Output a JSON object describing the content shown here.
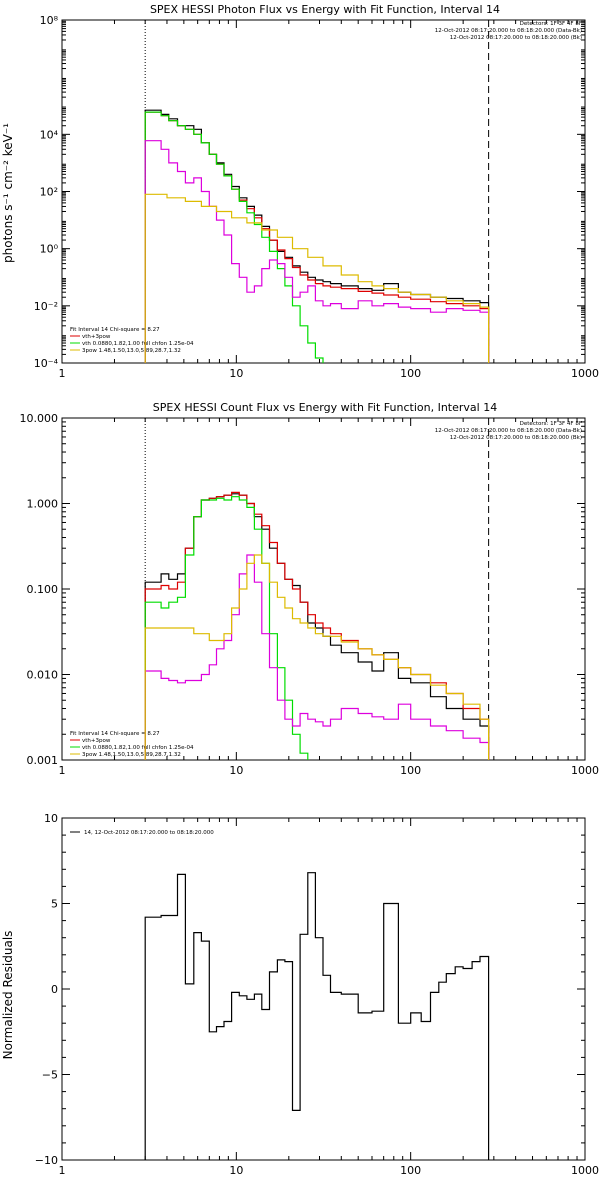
{
  "chart_data": [
    {
      "type": "line",
      "title": "SPEX HESSI Photon Flux vs Energy with Fit Function, Interval 14",
      "xlabel": "",
      "ylabel": "photons s⁻¹ cm⁻² keV⁻¹",
      "xscale": "log",
      "yscale": "log",
      "xlim": [
        1,
        1000
      ],
      "ylim": [
        0.0001,
        100000000
      ],
      "xticks": [
        1,
        10,
        100,
        1000
      ],
      "xtick_labels": [
        "1",
        "10",
        "100",
        "1000"
      ],
      "yticks": [
        0.0001,
        0.01,
        1,
        100,
        10000,
        100000000
      ],
      "ytick_labels": [
        "10⁻⁴",
        "10⁻²",
        "10⁰",
        "10²",
        "10⁴",
        "10⁸"
      ],
      "vlines": [
        {
          "x": 3,
          "style": "dotted"
        },
        {
          "x": 280,
          "style": "dashed"
        }
      ],
      "legend_top": [
        "Detectors: 1F 3F 4F 8F",
        "12-Oct-2012 08:17:20.000 to 08:18:20.000 (Data-Bk)",
        "12-Oct-2012 08:17:20.000 to 08:18:20.000 (Bk)"
      ],
      "legend_bottom": [
        "Fit Interval 14    Chi-square = 8.27",
        "vth+3pow",
        "vth 0.0880,1.82,1.00  full chfon 1.25e-04",
        "3pow 1.48,1.50,13.0,5.89,28.7,1.32"
      ],
      "series": [
        {
          "color": "#000000",
          "x": [
            3,
            3.3,
            3.7,
            4.1,
            4.6,
            5.1,
            5.7,
            6.3,
            7,
            7.7,
            8.5,
            9.4,
            10.4,
            11.5,
            12.7,
            14,
            15.5,
            17.2,
            19,
            21,
            23.2,
            25.7,
            28.4,
            31.4,
            34.7,
            40,
            50,
            60,
            70,
            85,
            100,
            130,
            160,
            200,
            250,
            280
          ],
          "y": [
            70000,
            70000,
            50000,
            35000,
            20000,
            20000,
            15000,
            5000,
            2000,
            1000,
            400,
            150,
            60,
            30,
            15,
            6,
            2,
            0.8,
            0.5,
            0.25,
            0.15,
            0.1,
            0.08,
            0.07,
            0.06,
            0.05,
            0.04,
            0.035,
            0.06,
            0.03,
            0.025,
            0.02,
            0.018,
            0.015,
            0.013,
            0.012
          ]
        },
        {
          "color": "#dd0000",
          "x": [
            3,
            3.3,
            3.7,
            4.1,
            4.6,
            5.1,
            5.7,
            6.3,
            7,
            7.7,
            8.5,
            9.4,
            10.4,
            11.5,
            12.7,
            14,
            15.5,
            17.2,
            19,
            21,
            23.2,
            25.7,
            28.4,
            31.4,
            34.7,
            40,
            50,
            60,
            70,
            85,
            100,
            130,
            160,
            200,
            250,
            280
          ],
          "y": [
            60000,
            60000,
            45000,
            30000,
            20000,
            15000,
            10000,
            5000,
            2000,
            900,
            350,
            120,
            50,
            25,
            12,
            5,
            2,
            0.9,
            0.45,
            0.22,
            0.12,
            0.08,
            0.06,
            0.05,
            0.045,
            0.04,
            0.032,
            0.028,
            0.024,
            0.02,
            0.017,
            0.014,
            0.012,
            0.01,
            0.008,
            0.007
          ]
        },
        {
          "color": "#00dd00",
          "x": [
            3,
            3.3,
            3.7,
            4.1,
            4.6,
            5.1,
            5.7,
            6.3,
            7,
            7.7,
            8.5,
            9.4,
            10.4,
            11.5,
            12.7,
            14,
            15.5,
            17.2,
            19,
            21,
            23.2,
            25.7,
            28.4,
            31.4
          ],
          "y": [
            60000,
            60000,
            45000,
            30000,
            20000,
            15000,
            10000,
            5000,
            2000,
            900,
            350,
            120,
            45,
            18,
            7,
            2.5,
            0.8,
            0.2,
            0.05,
            0.01,
            0.002,
            0.0005,
            0.00015,
            0.0001
          ]
        },
        {
          "color": "#dd00dd",
          "x": [
            3,
            3.3,
            3.7,
            4.1,
            4.6,
            5.1,
            5.7,
            6.3,
            7,
            7.7,
            8.5,
            9.4,
            10.4,
            11.5,
            12.7,
            14,
            15.5,
            17.2,
            19,
            21,
            23.2,
            25.7,
            28.4,
            31.4,
            34.7,
            40,
            50,
            60,
            70,
            85,
            100,
            130,
            160,
            200,
            250,
            280
          ],
          "y": [
            6000,
            6000,
            3000,
            1000,
            500,
            200,
            300,
            100,
            30,
            10,
            3,
            0.3,
            0.1,
            0.03,
            0.05,
            0.2,
            0.4,
            0.3,
            0.1,
            0.02,
            0.03,
            0.05,
            0.015,
            0.01,
            0.012,
            0.008,
            0.015,
            0.01,
            0.012,
            0.009,
            0.008,
            0.006,
            0.008,
            0.007,
            0.006,
            0.005
          ]
        },
        {
          "color": "#ddbb00",
          "x": [
            3,
            4,
            5.1,
            6.3,
            7.7,
            9.4,
            11.5,
            14,
            17.2,
            21,
            25.7,
            31.4,
            40,
            50,
            60,
            70,
            85,
            100,
            130,
            160,
            200,
            250,
            280
          ],
          "y": [
            80,
            60,
            45,
            30,
            20,
            12,
            8,
            4.5,
            2.5,
            1,
            0.5,
            0.25,
            0.12,
            0.07,
            0.05,
            0.04,
            0.03,
            0.025,
            0.02,
            0.015,
            0.012,
            0.009,
            0.006
          ]
        }
      ]
    },
    {
      "type": "line",
      "title": "SPEX HESSI Count Flux vs Energy with Fit Function, Interval 14",
      "xlabel": "",
      "ylabel": "",
      "xscale": "log",
      "yscale": "log",
      "xlim": [
        1,
        1000
      ],
      "ylim": [
        0.001,
        10
      ],
      "xticks": [
        1,
        10,
        100,
        1000
      ],
      "xtick_labels": [
        "1",
        "10",
        "100",
        "1000"
      ],
      "yticks": [
        0.001,
        0.01,
        0.1,
        1,
        10
      ],
      "ytick_labels": [
        "0.001",
        "0.010",
        "0.100",
        "1.000",
        "10.000"
      ],
      "vlines": [
        {
          "x": 3,
          "style": "dotted"
        },
        {
          "x": 280,
          "style": "dashed"
        }
      ],
      "legend_top": [
        "Detectors: 1F 3F 4F 8F",
        "12-Oct-2012 08:17:20.000 to 08:18:20.000 (Data-Bk)",
        "12-Oct-2012 08:17:20.000 to 08:18:20.000 (Bk)"
      ],
      "legend_bottom": [
        "Fit Interval 14    Chi-square = 8.27",
        "vth+3pow",
        "vth 0.0880,1.82,1.00  full chfon 1.25e-04",
        "3pow 1.48,1.50,13.0,5.89,28.7,1.32"
      ],
      "series": [
        {
          "color": "#000000",
          "x": [
            3,
            3.7,
            4.1,
            4.6,
            5.1,
            5.7,
            6.3,
            7,
            7.7,
            8.5,
            9.4,
            10.4,
            11.5,
            12.7,
            14,
            15.5,
            17.2,
            19,
            21,
            23.2,
            25.7,
            28.4,
            31.4,
            34.7,
            40,
            50,
            60,
            70,
            85,
            100,
            130,
            160,
            200,
            250,
            280
          ],
          "y": [
            0.12,
            0.15,
            0.13,
            0.15,
            0.3,
            0.7,
            1.1,
            1.15,
            1.2,
            1.25,
            1.3,
            1.25,
            1.0,
            0.7,
            0.5,
            0.3,
            0.2,
            0.13,
            0.11,
            0.07,
            0.04,
            0.035,
            0.028,
            0.022,
            0.018,
            0.014,
            0.011,
            0.018,
            0.009,
            0.008,
            0.0055,
            0.004,
            0.003,
            0.0025,
            0.0015
          ]
        },
        {
          "color": "#dd0000",
          "x": [
            3,
            3.7,
            4.1,
            4.6,
            5.1,
            5.7,
            6.3,
            7,
            7.7,
            8.5,
            9.4,
            10.4,
            11.5,
            12.7,
            14,
            15.5,
            17.2,
            19,
            21,
            23.2,
            25.7,
            28.4,
            31.4,
            34.7,
            40,
            50,
            60,
            70,
            85,
            100,
            130,
            160,
            200,
            250,
            280
          ],
          "y": [
            0.1,
            0.11,
            0.1,
            0.12,
            0.3,
            0.7,
            1.1,
            1.15,
            1.2,
            1.25,
            1.35,
            1.25,
            1.0,
            0.75,
            0.55,
            0.35,
            0.2,
            0.13,
            0.1,
            0.07,
            0.05,
            0.04,
            0.035,
            0.03,
            0.025,
            0.02,
            0.017,
            0.015,
            0.012,
            0.01,
            0.008,
            0.006,
            0.004,
            0.003,
            0.002
          ]
        },
        {
          "color": "#00dd00",
          "x": [
            3,
            3.7,
            4.1,
            4.6,
            5.1,
            5.7,
            6.3,
            7,
            7.7,
            8.5,
            9.4,
            10.4,
            11.5,
            12.7,
            14,
            15.5,
            17.2,
            19,
            21,
            23.2,
            25.7
          ],
          "y": [
            0.07,
            0.06,
            0.07,
            0.08,
            0.25,
            0.7,
            1.1,
            1.1,
            1.15,
            1.1,
            1.2,
            1.1,
            0.9,
            0.5,
            0.2,
            0.03,
            0.012,
            0.005,
            0.002,
            0.0012,
            0.001
          ]
        },
        {
          "color": "#dd00dd",
          "x": [
            3,
            3.7,
            4.1,
            4.6,
            5.1,
            5.7,
            6.3,
            7,
            7.7,
            8.5,
            9.4,
            10.4,
            11.5,
            12.7,
            14,
            15.5,
            17.2,
            19,
            21,
            23.2,
            25.7,
            28.4,
            31.4,
            34.7,
            40,
            50,
            60,
            70,
            85,
            100,
            130,
            160,
            200,
            250,
            280
          ],
          "y": [
            0.011,
            0.009,
            0.0085,
            0.008,
            0.0085,
            0.0085,
            0.01,
            0.013,
            0.02,
            0.025,
            0.05,
            0.15,
            0.25,
            0.12,
            0.03,
            0.012,
            0.005,
            0.003,
            0.0025,
            0.0035,
            0.003,
            0.0028,
            0.0025,
            0.003,
            0.004,
            0.0035,
            0.0032,
            0.003,
            0.0045,
            0.003,
            0.0025,
            0.0022,
            0.0018,
            0.0016,
            0.0015
          ]
        },
        {
          "color": "#ddbb00",
          "x": [
            3,
            3.7,
            4.6,
            5.7,
            7,
            8.5,
            9.4,
            10.4,
            11.5,
            12.7,
            14,
            15.5,
            17.2,
            19,
            21,
            23.2,
            25.7,
            28.4,
            31.4,
            40,
            50,
            60,
            70,
            85,
            100,
            130,
            160,
            200,
            250,
            280
          ],
          "y": [
            0.035,
            0.035,
            0.035,
            0.03,
            0.025,
            0.03,
            0.06,
            0.1,
            0.2,
            0.25,
            0.2,
            0.12,
            0.08,
            0.06,
            0.045,
            0.04,
            0.035,
            0.03,
            0.028,
            0.024,
            0.02,
            0.017,
            0.015,
            0.012,
            0.01,
            0.0075,
            0.006,
            0.0045,
            0.003,
            0.0012
          ]
        }
      ]
    },
    {
      "type": "line",
      "title": "",
      "xlabel": "",
      "ylabel": "Normalized Residuals",
      "xscale": "log",
      "yscale": "linear",
      "xlim": [
        1,
        1000
      ],
      "ylim": [
        -10,
        10
      ],
      "xticks": [
        1,
        10,
        100,
        1000
      ],
      "xtick_labels": [
        "1",
        "10",
        "100",
        "1000"
      ],
      "yticks": [
        -10,
        -5,
        0,
        5,
        10
      ],
      "ytick_labels": [
        "−10",
        "−5",
        "0",
        "5",
        "10"
      ],
      "legend": [
        "14, 12-Oct-2012 08:17:20.000 to 08:18:20.000"
      ],
      "series": [
        {
          "color": "#000000",
          "x": [
            3,
            3.7,
            4.6,
            5.1,
            5.7,
            6.3,
            7,
            7.7,
            8.5,
            9.4,
            10.4,
            11.5,
            12.7,
            14,
            15.5,
            17.2,
            19,
            21,
            23.2,
            25.7,
            28.4,
            31.4,
            34.7,
            40,
            50,
            60,
            70,
            85,
            100,
            115,
            130,
            145,
            160,
            180,
            200,
            225,
            250,
            280
          ],
          "y": [
            4.2,
            4.3,
            6.7,
            0.3,
            3.3,
            2.8,
            -2.5,
            -2.2,
            -1.9,
            -0.2,
            -0.4,
            -0.6,
            -0.3,
            -1.2,
            1.0,
            1.7,
            1.6,
            -7.1,
            3.2,
            6.8,
            3.0,
            0.8,
            -0.2,
            -0.3,
            -1.4,
            -1.3,
            5.0,
            -2.0,
            -1.4,
            -1.9,
            -0.2,
            0.4,
            0.9,
            1.3,
            1.2,
            1.6,
            1.9,
            1.8
          ]
        }
      ]
    }
  ]
}
